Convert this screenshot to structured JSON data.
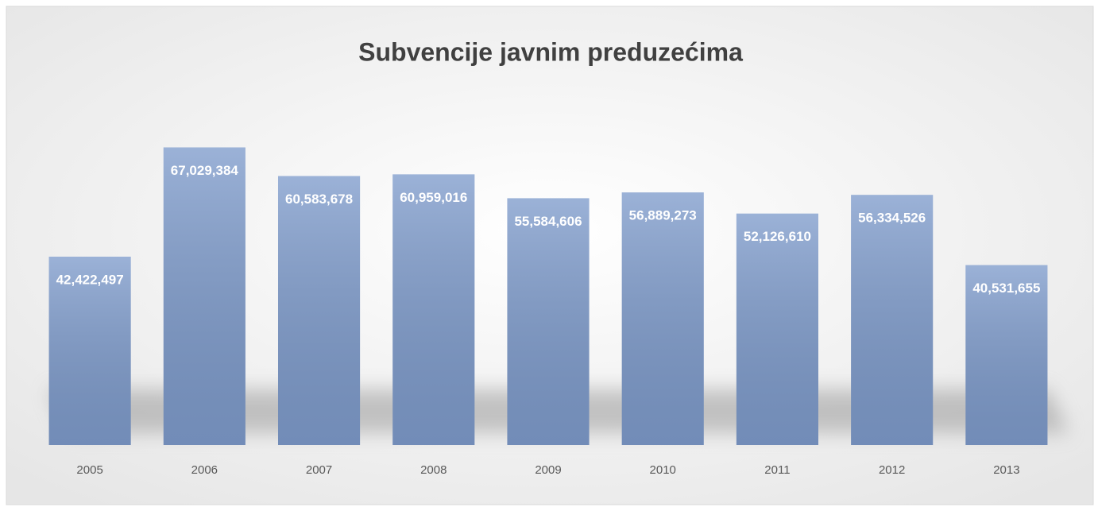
{
  "chart_data": {
    "type": "bar",
    "title": "Subvencije javnim preduzećima",
    "categories": [
      "2005",
      "2006",
      "2007",
      "2008",
      "2009",
      "2010",
      "2011",
      "2012",
      "2013"
    ],
    "values": [
      42422497,
      67029384,
      60583678,
      60959016,
      55584606,
      56889273,
      52126610,
      56334526,
      40531655
    ],
    "value_labels": [
      "42,422,497",
      "67,029,384",
      "60,583,678",
      "60,959,016",
      "55,584,606",
      "56,889,273",
      "52,126,610",
      "56,334,526",
      "40,531,655"
    ],
    "color": "#7f9ccc",
    "ylim": [
      0,
      80000000
    ]
  }
}
